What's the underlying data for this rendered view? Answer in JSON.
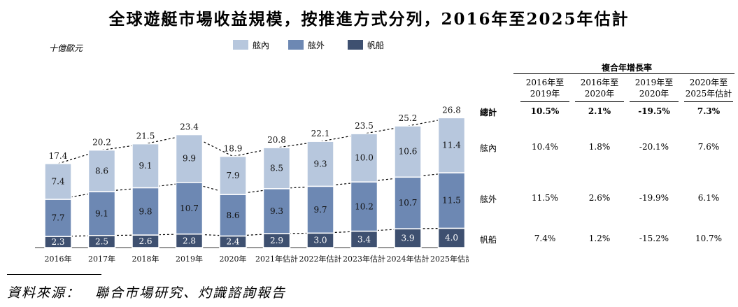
{
  "title": "全球遊艇市場收益規模，按推進方式分列，2016年至2025年估計",
  "unit": "十億歐元",
  "source": "資料來源：　聯合市場研究、灼識諮詢報告",
  "colors": {
    "inboard": "#b7c7dd",
    "outboard": "#6d88b3",
    "sail": "#3e5070"
  },
  "chart_data": {
    "type": "bar",
    "stacked": true,
    "categories": [
      "2016年",
      "2017年",
      "2018年",
      "2019年",
      "2020年",
      "2021年估計",
      "2022年估計",
      "2023年估計",
      "2024年估計",
      "2025年估計"
    ],
    "series": [
      {
        "name": "帆船",
        "values": [
          2.3,
          2.5,
          2.6,
          2.8,
          2.4,
          2.9,
          3.0,
          3.4,
          3.9,
          4.0
        ]
      },
      {
        "name": "舷外",
        "values": [
          7.7,
          9.1,
          9.8,
          10.7,
          8.6,
          9.3,
          9.7,
          10.2,
          10.7,
          11.5
        ]
      },
      {
        "name": "舷內",
        "values": [
          7.4,
          8.6,
          9.1,
          9.9,
          7.9,
          8.5,
          9.3,
          10.0,
          10.6,
          11.4
        ]
      }
    ],
    "totals": [
      "17.4",
      "20.2",
      "21.5",
      "23.4",
      "18.9",
      "20.8",
      "22.1",
      "23.5",
      "25.2",
      "26.8"
    ],
    "labels": [
      [
        "2.3",
        "2.5",
        "2.6",
        "2.8",
        "2.4",
        "2.9",
        "3.0",
        "3.4",
        "3.9",
        "4.0"
      ],
      [
        "7.7",
        "9.1",
        "9.8",
        "10.7",
        "8.6",
        "9.3",
        "9.7",
        "10.2",
        "10.7",
        "11.5"
      ],
      [
        "7.4",
        "8.6",
        "9.1",
        "9.9",
        "7.9",
        "8.5",
        "9.3",
        "10.0",
        "10.6",
        "11.4"
      ]
    ],
    "legend": [
      "舷內",
      "舷外",
      "帆船"
    ],
    "legend_position": "top",
    "grid": false
  },
  "cagr_table": {
    "heading": "複合年增長率",
    "columns": [
      [
        "2016年至",
        "2019年"
      ],
      [
        "2016年至",
        "2020年"
      ],
      [
        "2019年至",
        "2020年"
      ],
      [
        "2020年至",
        "2025年估計"
      ]
    ],
    "rows": [
      {
        "label": "總計",
        "values": [
          "10.5%",
          "2.1%",
          "-19.5%",
          "7.3%"
        ],
        "bold": true
      },
      {
        "label": "舷內",
        "values": [
          "10.4%",
          "1.8%",
          "-20.1%",
          "7.6%"
        ],
        "bold": false
      },
      {
        "label": "舷外",
        "values": [
          "11.5%",
          "2.6%",
          "-19.9%",
          "6.1%"
        ],
        "bold": false
      },
      {
        "label": "帆船",
        "values": [
          "7.4%",
          "1.2%",
          "-15.2%",
          "10.7%"
        ],
        "bold": false
      }
    ]
  }
}
